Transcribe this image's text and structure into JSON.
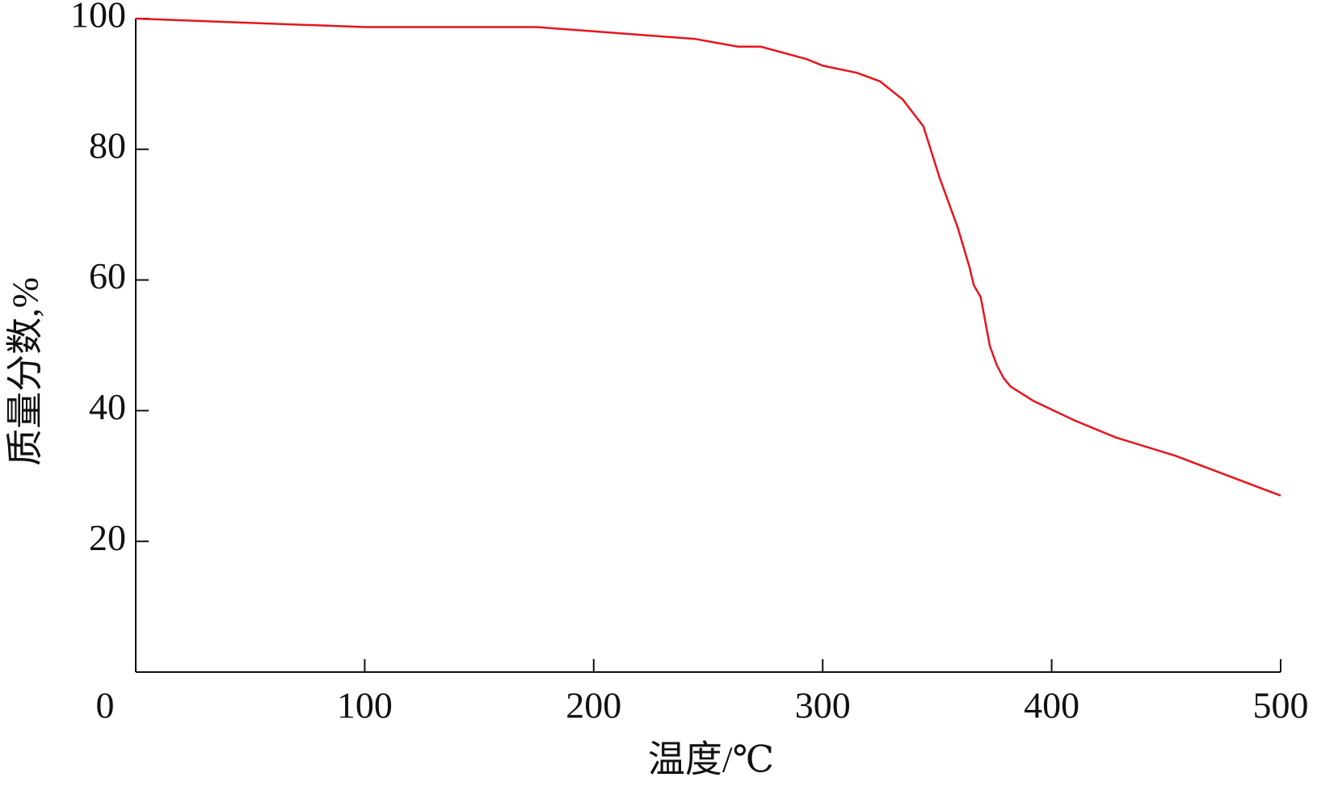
{
  "chart_data": {
    "type": "line",
    "x_label": "温度/℃",
    "y_label": "质量分数,%",
    "xlim": [
      0,
      500
    ],
    "ylim": [
      0,
      100
    ],
    "xticks": [
      0,
      100,
      200,
      300,
      400,
      500
    ],
    "yticks": [
      20,
      40,
      60,
      80,
      100
    ],
    "series": [
      {
        "color": "#e8141c",
        "x": [
          0,
          100,
          175,
          244,
          263,
          273,
          293,
          300,
          315,
          325,
          335,
          344,
          351,
          359,
          364,
          366,
          369,
          373,
          376,
          379,
          382,
          392,
          410,
          428,
          454,
          500
        ],
        "values": [
          100,
          98.7,
          98.7,
          96.9,
          95.7,
          95.7,
          93.8,
          92.8,
          91.7,
          90.4,
          87.6,
          83.5,
          75.7,
          68,
          62.1,
          59.2,
          57.4,
          49.9,
          47,
          45,
          43.7,
          41.5,
          38.5,
          35.9,
          33.1,
          27
        ]
      }
    ]
  }
}
